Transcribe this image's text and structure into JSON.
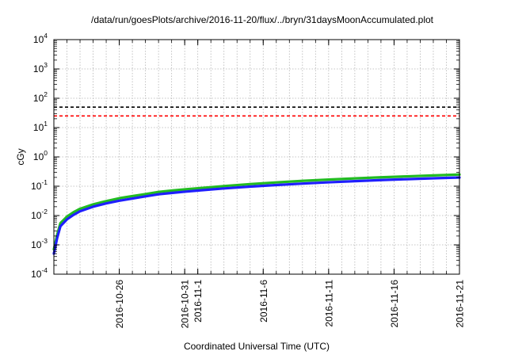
{
  "chart_data": {
    "type": "line",
    "title": "/data/run/goesPlots/archive/2016-11-20/flux/../bryn/31daysMoonAccumulated.plot",
    "xlabel": "Coordinated Universal Time (UTC)",
    "ylabel": "cGy",
    "yscale": "log",
    "ylim": [
      0.0001,
      10000
    ],
    "xlim": [
      "2016-10-21",
      "2016-11-21"
    ],
    "y_ticks": [
      {
        "base": "10",
        "exp": "-4",
        "value": 0.0001
      },
      {
        "base": "10",
        "exp": "-3",
        "value": 0.001
      },
      {
        "base": "10",
        "exp": "-2",
        "value": 0.01
      },
      {
        "base": "10",
        "exp": "-1",
        "value": 0.1
      },
      {
        "base": "10",
        "exp": "0",
        "value": 1
      },
      {
        "base": "10",
        "exp": "1",
        "value": 10
      },
      {
        "base": "10",
        "exp": "2",
        "value": 100
      },
      {
        "base": "10",
        "exp": "3",
        "value": 1000
      },
      {
        "base": "10",
        "exp": "4",
        "value": 10000
      }
    ],
    "x_ticks": [
      {
        "date": "2016-10-26",
        "label": "2016-10-26"
      },
      {
        "date": "2016-10-31",
        "label": "2016-10-31"
      },
      {
        "date": "2016-11-01",
        "label": "2016-11-1"
      },
      {
        "date": "2016-11-06",
        "label": "2016-11-6"
      },
      {
        "date": "2016-11-11",
        "label": "2016-11-11"
      },
      {
        "date": "2016-11-16",
        "label": "2016-11-16"
      },
      {
        "date": "2016-11-21",
        "label": "2016-11-21"
      }
    ],
    "grid": true,
    "reference_lines": [
      {
        "value": 50,
        "color": "#000000",
        "style": "dashed"
      },
      {
        "value": 25,
        "color": "#ff0000",
        "style": "dashed"
      }
    ],
    "series": [
      {
        "color": "#22bb22",
        "x": [
          "2016-10-21",
          "2016-10-21T06:00",
          "2016-10-21T12:00",
          "2016-10-22",
          "2016-10-22T12:00",
          "2016-10-23",
          "2016-10-24",
          "2016-10-25",
          "2016-10-26",
          "2016-10-27",
          "2016-10-28",
          "2016-10-29",
          "2016-10-30",
          "2016-10-31",
          "2016-11-01",
          "2016-11-03",
          "2016-11-05",
          "2016-11-07",
          "2016-11-09",
          "2016-11-11",
          "2016-11-13",
          "2016-11-15",
          "2016-11-17",
          "2016-11-19",
          "2016-11-21"
        ],
        "y": [
          0.0007,
          0.0022,
          0.0055,
          0.0092,
          0.013,
          0.017,
          0.024,
          0.031,
          0.039,
          0.046,
          0.054,
          0.064,
          0.071,
          0.078,
          0.085,
          0.101,
          0.118,
          0.135,
          0.152,
          0.168,
          0.185,
          0.201,
          0.217,
          0.233,
          0.25
        ]
      },
      {
        "color": "#1f1fff",
        "x": [
          "2016-10-21",
          "2016-10-21T06:00",
          "2016-10-21T12:00",
          "2016-10-22",
          "2016-10-22T12:00",
          "2016-10-23",
          "2016-10-24",
          "2016-10-25",
          "2016-10-26",
          "2016-10-27",
          "2016-10-28",
          "2016-10-29",
          "2016-10-30",
          "2016-10-31",
          "2016-11-01",
          "2016-11-03",
          "2016-11-05",
          "2016-11-07",
          "2016-11-09",
          "2016-11-11",
          "2016-11-13",
          "2016-11-15",
          "2016-11-17",
          "2016-11-19",
          "2016-11-21"
        ],
        "y": [
          0.0005,
          0.0017,
          0.0043,
          0.0074,
          0.0105,
          0.014,
          0.02,
          0.026,
          0.032,
          0.038,
          0.045,
          0.053,
          0.059,
          0.065,
          0.071,
          0.084,
          0.097,
          0.11,
          0.123,
          0.136,
          0.149,
          0.162,
          0.174,
          0.186,
          0.198
        ]
      }
    ]
  }
}
